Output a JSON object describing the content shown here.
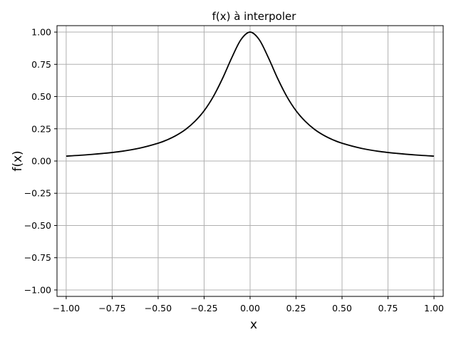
{
  "chart_data": {
    "type": "line",
    "title": "f(x) à interpoler",
    "xlabel": "x",
    "ylabel": "f(x)",
    "xlim": [
      -1.05,
      1.05
    ],
    "ylim": [
      -1.05,
      1.05
    ],
    "grid": true,
    "xticks": [
      -1.0,
      -0.75,
      -0.5,
      -0.25,
      0.0,
      0.25,
      0.5,
      0.75,
      1.0
    ],
    "xtick_labels": [
      "−1.00",
      "−0.75",
      "−0.50",
      "−0.25",
      "0.00",
      "0.25",
      "0.50",
      "0.75",
      "1.00"
    ],
    "yticks": [
      1.0,
      0.75,
      0.5,
      0.25,
      0.0,
      -0.25,
      -0.5,
      -0.75,
      -1.0
    ],
    "ytick_labels": [
      "1.00",
      "0.75",
      "0.50",
      "0.25",
      "0.00",
      "−0.25",
      "−0.50",
      "−0.75",
      "−1.00"
    ],
    "series": [
      {
        "color": "#000000",
        "x": [
          -1.0,
          -0.9,
          -0.8,
          -0.7,
          -0.6,
          -0.5,
          -0.45,
          -0.4,
          -0.35,
          -0.3,
          -0.25,
          -0.2,
          -0.15,
          -0.1,
          -0.05,
          0.0,
          0.05,
          0.1,
          0.15,
          0.2,
          0.25,
          0.3,
          0.35,
          0.4,
          0.45,
          0.5,
          0.6,
          0.7,
          0.8,
          0.9,
          1.0
        ],
        "y": [
          0.038,
          0.047,
          0.059,
          0.075,
          0.1,
          0.138,
          0.165,
          0.2,
          0.246,
          0.308,
          0.39,
          0.5,
          0.64,
          0.8,
          0.941,
          1.0,
          0.941,
          0.8,
          0.64,
          0.5,
          0.39,
          0.308,
          0.246,
          0.2,
          0.165,
          0.138,
          0.1,
          0.075,
          0.059,
          0.047,
          0.038
        ]
      }
    ]
  }
}
